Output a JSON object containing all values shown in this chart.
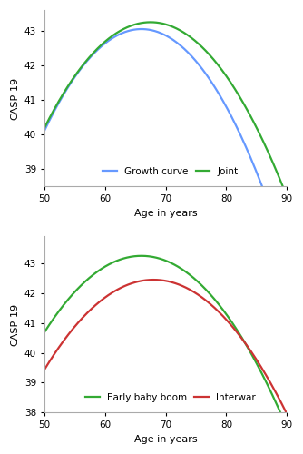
{
  "top_panel": {
    "growth_curve": {
      "color": "#6699ff",
      "label": "Growth curve",
      "peak_age": 66.0,
      "peak_val": 43.05,
      "curv": -0.0115
    },
    "joint": {
      "color": "#33aa33",
      "label": "Joint",
      "peak_age": 67.5,
      "peak_val": 43.25,
      "curv": -0.01
    },
    "ylim": [
      38.5,
      43.6
    ],
    "yticks": [
      39,
      40,
      41,
      42,
      43
    ],
    "xlabel": "Age in years",
    "ylabel": "CASP-19"
  },
  "bottom_panel": {
    "early_baby_boom": {
      "color": "#33aa33",
      "label": "Early baby boom",
      "peak_age": 66.0,
      "peak_val": 43.25,
      "curv": -0.01
    },
    "interwar": {
      "color": "#cc3333",
      "label": "Interwar",
      "peak_age": 68.0,
      "peak_val": 42.45,
      "curv": -0.0093
    },
    "ylim": [
      38.0,
      43.9
    ],
    "yticks": [
      38,
      39,
      40,
      41,
      42,
      43
    ],
    "xlabel": "Age in years",
    "ylabel": "CASP-19"
  },
  "xlim": [
    50,
    90
  ],
  "xticks": [
    50,
    60,
    70,
    80,
    90
  ],
  "line_width": 1.6,
  "legend_fontsize": 7.5,
  "axis_label_fontsize": 8,
  "tick_fontsize": 7.5
}
